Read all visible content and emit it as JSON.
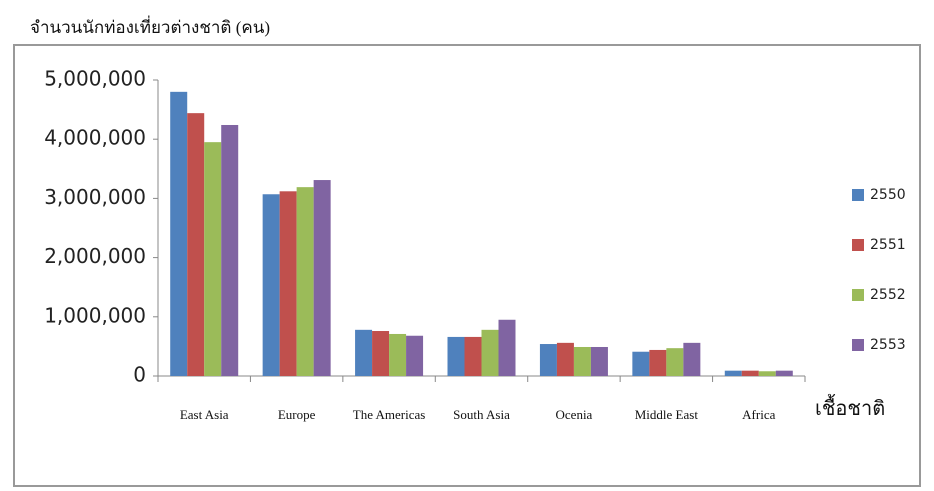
{
  "chart_data": {
    "type": "bar",
    "title": "จำนวนนักท่องเที่ยวต่างชาติ (คน)",
    "x_label": "เชื้อชาติ",
    "categories": [
      "East Asia",
      "Europe",
      "The Americas",
      "South Asia",
      "Ocenia",
      "Middle East",
      "Africa"
    ],
    "series": [
      {
        "name": "2550",
        "color": "#4f81bd",
        "values": [
          4800000,
          3070000,
          780000,
          660000,
          540000,
          410000,
          90000
        ]
      },
      {
        "name": "2551",
        "color": "#c0504d",
        "values": [
          4440000,
          3120000,
          760000,
          660000,
          560000,
          440000,
          90000
        ]
      },
      {
        "name": "2552",
        "color": "#9bbb59",
        "values": [
          3950000,
          3190000,
          710000,
          780000,
          490000,
          470000,
          80000
        ]
      },
      {
        "name": "2553",
        "color": "#8064a2",
        "values": [
          4240000,
          3310000,
          680000,
          950000,
          490000,
          560000,
          90000
        ]
      }
    ],
    "ylim": [
      0,
      5000000
    ],
    "yticks": [
      0,
      {
        "value": 1000000,
        "label": "1,000,000"
      },
      {
        "value": 2000000,
        "label": "2,000,000"
      },
      {
        "value": 3000000,
        "label": "3,000,000"
      },
      {
        "value": 4000000,
        "label": "4,000,000"
      },
      {
        "value": 5000000,
        "label": "5,000,000"
      }
    ],
    "grid": false,
    "legend": "right"
  }
}
